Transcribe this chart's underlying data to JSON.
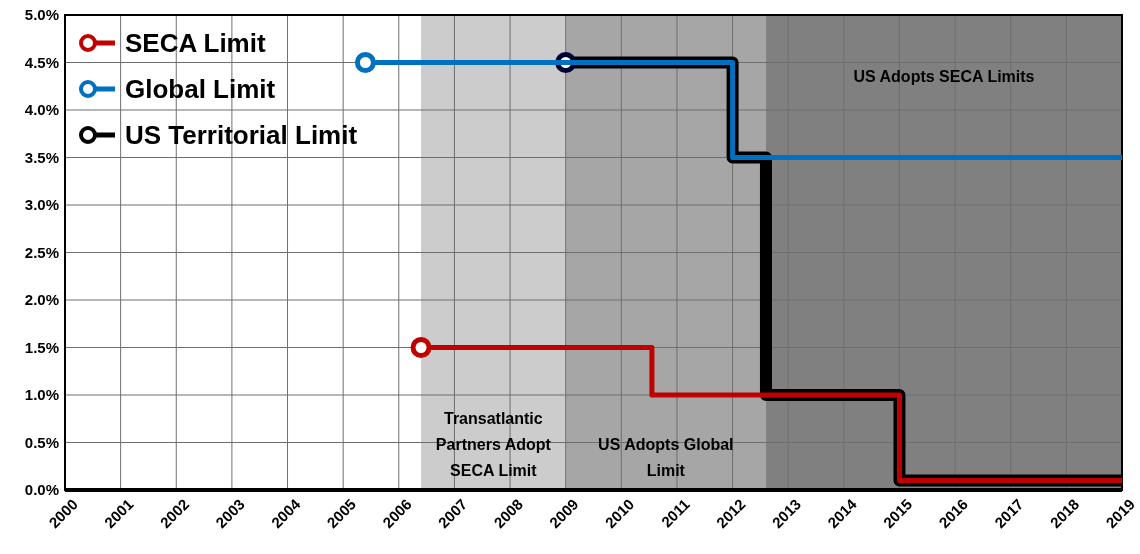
{
  "chart_data": {
    "type": "step",
    "series": [
      {
        "name": "US Territorial Limit",
        "color": "#000000",
        "x": [
          2009,
          2012.0,
          2012.6,
          2015.0,
          2019
        ],
        "values": [
          4.5,
          3.5,
          1.0,
          0.1,
          0.1
        ]
      },
      {
        "name": "Global Limit",
        "color": "#0070c0",
        "x": [
          2005.4,
          2012.0,
          2019
        ],
        "values": [
          4.5,
          3.5,
          3.5
        ]
      },
      {
        "name": "SECA Limit",
        "color": "#c00000",
        "x": [
          2006.4,
          2010.55,
          2015.0,
          2019
        ],
        "values": [
          1.5,
          1.0,
          0.1,
          0.1
        ]
      }
    ],
    "xlim": [
      2000,
      2019
    ],
    "xticks": [
      2000,
      2001,
      2002,
      2003,
      2004,
      2005,
      2006,
      2007,
      2008,
      2009,
      2010,
      2011,
      2012,
      2013,
      2014,
      2015,
      2016,
      2017,
      2018,
      2019
    ],
    "ylim": [
      0,
      5
    ],
    "yticks": [
      {
        "value": 0,
        "label": "0.0%"
      },
      {
        "value": 0.5,
        "label": "0.5%"
      },
      {
        "value": 1,
        "label": "1.0%"
      },
      {
        "value": 1.5,
        "label": "1.5%"
      },
      {
        "value": 2,
        "label": "2.0%"
      },
      {
        "value": 2.5,
        "label": "2.5%"
      },
      {
        "value": 3,
        "label": "3.0%"
      },
      {
        "value": 3.5,
        "label": "3.5%"
      },
      {
        "value": 4,
        "label": "4.0%"
      },
      {
        "value": 4.5,
        "label": "4.5%"
      },
      {
        "value": 5,
        "label": "5.0%"
      }
    ],
    "bands": [
      {
        "axis": "x",
        "from": 2006.4,
        "to": 2009,
        "label": "Transatlantic Partners Adopt SECA Limit",
        "color": "#cccccc"
      },
      {
        "axis": "x",
        "from": 2009,
        "to": 2012.6,
        "label": "US Adopts Global Limit",
        "color": "#a6a6a6"
      },
      {
        "axis": "x",
        "from": 2012.6,
        "to": 2019,
        "label": "US Adopts SECA Limits",
        "color": "#808080"
      }
    ],
    "grid": true,
    "legend": "top left",
    "line_style": "solid"
  }
}
